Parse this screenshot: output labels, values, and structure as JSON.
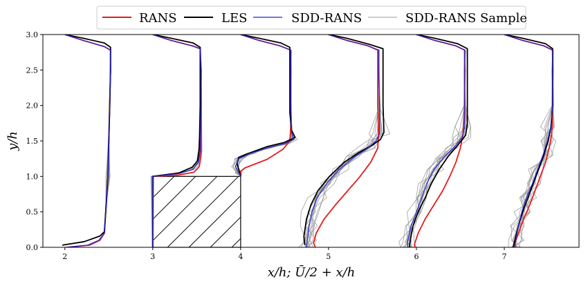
{
  "chart_data": {
    "type": "line",
    "title": "",
    "xlabel": "x/h;   Ū/2 + x/h",
    "ylabel": "y/h",
    "xlim": [
      1.75,
      7.85
    ],
    "ylim": [
      0,
      3.0
    ],
    "xticks": [
      2,
      3,
      4,
      5,
      6,
      7
    ],
    "yticks": [
      0.0,
      0.5,
      1.0,
      1.5,
      2.0,
      2.5,
      3.0
    ],
    "xtick_labels": [
      "2",
      "3",
      "4",
      "5",
      "6",
      "7"
    ],
    "ytick_labels": [
      "0.0",
      "0.5",
      "1.0",
      "1.5",
      "2.0",
      "2.5",
      "3.0"
    ],
    "legend_position": "top-center",
    "legend": [
      {
        "name": "RANS",
        "color": "#e41a1c",
        "width": 2
      },
      {
        "name": "LES",
        "color": "#000000",
        "width": 2
      },
      {
        "name": "SDD-RANS",
        "color": "#2323d6",
        "width": 1.2
      },
      {
        "name": "SDD-RANS Sample",
        "color": "#999999",
        "width": 1
      }
    ],
    "obstacle": {
      "x": [
        3,
        4
      ],
      "y": [
        0,
        1
      ],
      "fill": "hatched"
    },
    "sample_count": 12,
    "stations": [
      {
        "x0": 2,
        "RANS": [
          [
            2.02,
            0
          ],
          [
            2.28,
            0.03
          ],
          [
            2.4,
            0.1
          ],
          [
            2.45,
            0.2
          ],
          [
            2.47,
            0.6
          ],
          [
            2.49,
            1.0
          ],
          [
            2.5,
            1.5
          ],
          [
            2.51,
            2.0
          ],
          [
            2.52,
            2.5
          ],
          [
            2.52,
            2.78
          ],
          [
            2.45,
            2.83
          ],
          [
            2.2,
            2.92
          ],
          [
            2.0,
            3.0
          ]
        ],
        "LES": [
          [
            1.97,
            0.03
          ],
          [
            2.22,
            0.08
          ],
          [
            2.4,
            0.16
          ],
          [
            2.45,
            0.22
          ],
          [
            2.47,
            0.6
          ],
          [
            2.49,
            1.0
          ],
          [
            2.5,
            1.5
          ],
          [
            2.51,
            2.0
          ],
          [
            2.52,
            2.5
          ],
          [
            2.52,
            2.82
          ],
          [
            2.45,
            2.88
          ],
          [
            2.2,
            2.95
          ],
          [
            2.0,
            3.0
          ]
        ],
        "SDD": [
          [
            2.01,
            0
          ],
          [
            2.26,
            0.03
          ],
          [
            2.39,
            0.1
          ],
          [
            2.45,
            0.2
          ],
          [
            2.47,
            0.6
          ],
          [
            2.49,
            1.0
          ],
          [
            2.5,
            1.5
          ],
          [
            2.51,
            2.0
          ],
          [
            2.52,
            2.5
          ],
          [
            2.52,
            2.78
          ],
          [
            2.45,
            2.83
          ],
          [
            2.2,
            2.92
          ],
          [
            2.0,
            3.0
          ]
        ]
      },
      {
        "x0": 3,
        "RANS": [
          [
            3.0,
            0
          ],
          [
            3.0,
            1.0
          ],
          [
            3.3,
            1.02
          ],
          [
            3.47,
            1.06
          ],
          [
            3.53,
            1.14
          ],
          [
            3.55,
            1.3
          ],
          [
            3.55,
            2.0
          ],
          [
            3.55,
            2.5
          ],
          [
            3.54,
            2.8
          ],
          [
            3.45,
            2.84
          ],
          [
            3.2,
            2.92
          ],
          [
            3.0,
            3.0
          ]
        ],
        "LES": [
          [
            3.0,
            0
          ],
          [
            3.0,
            1.0
          ],
          [
            3.3,
            1.05
          ],
          [
            3.45,
            1.13
          ],
          [
            3.51,
            1.22
          ],
          [
            3.53,
            1.4
          ],
          [
            3.54,
            2.0
          ],
          [
            3.54,
            2.5
          ],
          [
            3.54,
            2.82
          ],
          [
            3.46,
            2.88
          ],
          [
            3.2,
            2.95
          ],
          [
            3.0,
            3.0
          ]
        ],
        "SDD": [
          [
            3.0,
            0
          ],
          [
            3.0,
            1.0
          ],
          [
            3.3,
            1.04
          ],
          [
            3.46,
            1.1
          ],
          [
            3.52,
            1.2
          ],
          [
            3.54,
            1.35
          ],
          [
            3.55,
            2.0
          ],
          [
            3.55,
            2.5
          ],
          [
            3.54,
            2.8
          ],
          [
            3.45,
            2.84
          ],
          [
            3.2,
            2.92
          ],
          [
            3.0,
            3.0
          ]
        ]
      },
      {
        "x0": 4,
        "RANS": [
          [
            4.0,
            1.0
          ],
          [
            4.0,
            1.07
          ],
          [
            4.05,
            1.12
          ],
          [
            4.3,
            1.24
          ],
          [
            4.48,
            1.38
          ],
          [
            4.56,
            1.5
          ],
          [
            4.57,
            1.7
          ],
          [
            4.57,
            2.0
          ],
          [
            4.57,
            2.5
          ],
          [
            4.57,
            2.78
          ],
          [
            4.45,
            2.84
          ],
          [
            4.2,
            2.92
          ],
          [
            4.0,
            3.0
          ]
        ],
        "LES": [
          [
            4.0,
            1.0
          ],
          [
            3.96,
            1.18
          ],
          [
            3.98,
            1.27
          ],
          [
            4.08,
            1.32
          ],
          [
            4.3,
            1.42
          ],
          [
            4.5,
            1.48
          ],
          [
            4.62,
            1.55
          ],
          [
            4.58,
            1.65
          ],
          [
            4.56,
            1.9
          ],
          [
            4.56,
            2.5
          ],
          [
            4.56,
            2.82
          ],
          [
            4.46,
            2.88
          ],
          [
            4.2,
            2.95
          ],
          [
            4.0,
            3.0
          ]
        ],
        "SDD": [
          [
            4.0,
            1.0
          ],
          [
            3.98,
            1.05
          ],
          [
            3.94,
            1.14
          ],
          [
            3.98,
            1.25
          ],
          [
            4.1,
            1.32
          ],
          [
            4.3,
            1.4
          ],
          [
            4.5,
            1.46
          ],
          [
            4.6,
            1.52
          ],
          [
            4.58,
            1.62
          ],
          [
            4.57,
            2.0
          ],
          [
            4.57,
            2.5
          ],
          [
            4.57,
            2.78
          ],
          [
            4.45,
            2.84
          ],
          [
            4.2,
            2.92
          ],
          [
            4.0,
            3.0
          ]
        ]
      },
      {
        "x0": 5,
        "RANS": [
          [
            4.85,
            0
          ],
          [
            4.83,
            0.06
          ],
          [
            4.86,
            0.2
          ],
          [
            4.95,
            0.4
          ],
          [
            5.08,
            0.6
          ],
          [
            5.22,
            0.8
          ],
          [
            5.36,
            1.0
          ],
          [
            5.48,
            1.2
          ],
          [
            5.56,
            1.4
          ],
          [
            5.57,
            1.6
          ],
          [
            5.56,
            2.0
          ],
          [
            5.56,
            2.5
          ],
          [
            5.56,
            2.78
          ],
          [
            5.45,
            2.84
          ],
          [
            5.2,
            2.92
          ],
          [
            5.0,
            3.0
          ]
        ],
        "LES": [
          [
            4.73,
            0.03
          ],
          [
            4.72,
            0.15
          ],
          [
            4.75,
            0.4
          ],
          [
            4.8,
            0.6
          ],
          [
            4.88,
            0.8
          ],
          [
            5.01,
            1.0
          ],
          [
            5.18,
            1.2
          ],
          [
            5.35,
            1.34
          ],
          [
            5.5,
            1.44
          ],
          [
            5.59,
            1.52
          ],
          [
            5.63,
            1.62
          ],
          [
            5.62,
            2.0
          ],
          [
            5.62,
            2.5
          ],
          [
            5.62,
            2.8
          ],
          [
            5.47,
            2.86
          ],
          [
            5.2,
            2.95
          ],
          [
            5.0,
            3.0
          ]
        ],
        "SDD": [
          [
            4.75,
            0
          ],
          [
            4.76,
            0.1
          ],
          [
            4.78,
            0.3
          ],
          [
            4.81,
            0.5
          ],
          [
            4.87,
            0.7
          ],
          [
            4.98,
            0.9
          ],
          [
            5.12,
            1.1
          ],
          [
            5.3,
            1.28
          ],
          [
            5.45,
            1.4
          ],
          [
            5.54,
            1.5
          ],
          [
            5.58,
            1.6
          ],
          [
            5.58,
            2.0
          ],
          [
            5.57,
            2.5
          ],
          [
            5.57,
            2.78
          ],
          [
            5.45,
            2.84
          ],
          [
            5.2,
            2.92
          ],
          [
            5.0,
            3.0
          ]
        ]
      },
      {
        "x0": 6,
        "RANS": [
          [
            5.98,
            0
          ],
          [
            5.98,
            0.05
          ],
          [
            6.02,
            0.2
          ],
          [
            6.1,
            0.4
          ],
          [
            6.2,
            0.6
          ],
          [
            6.3,
            0.8
          ],
          [
            6.38,
            1.0
          ],
          [
            6.45,
            1.2
          ],
          [
            6.5,
            1.4
          ],
          [
            6.53,
            1.6
          ],
          [
            6.55,
            2.0
          ],
          [
            6.55,
            2.5
          ],
          [
            6.55,
            2.78
          ],
          [
            6.45,
            2.84
          ],
          [
            6.2,
            2.92
          ],
          [
            6.0,
            3.0
          ]
        ],
        "LES": [
          [
            5.92,
            0
          ],
          [
            5.93,
            0.1
          ],
          [
            5.96,
            0.3
          ],
          [
            6.02,
            0.5
          ],
          [
            6.1,
            0.7
          ],
          [
            6.17,
            0.9
          ],
          [
            6.26,
            1.1
          ],
          [
            6.36,
            1.28
          ],
          [
            6.47,
            1.44
          ],
          [
            6.56,
            1.58
          ],
          [
            6.58,
            1.75
          ],
          [
            6.58,
            2.0
          ],
          [
            6.58,
            2.5
          ],
          [
            6.58,
            2.8
          ],
          [
            6.47,
            2.87
          ],
          [
            6.2,
            2.95
          ],
          [
            6.0,
            3.0
          ]
        ],
        "SDD": [
          [
            5.9,
            0
          ],
          [
            5.9,
            0.08
          ],
          [
            5.94,
            0.3
          ],
          [
            6.0,
            0.5
          ],
          [
            6.06,
            0.7
          ],
          [
            6.12,
            0.9
          ],
          [
            6.2,
            1.1
          ],
          [
            6.3,
            1.25
          ],
          [
            6.42,
            1.4
          ],
          [
            6.52,
            1.55
          ],
          [
            6.55,
            1.7
          ],
          [
            6.55,
            2.0
          ],
          [
            6.55,
            2.5
          ],
          [
            6.55,
            2.78
          ],
          [
            6.45,
            2.84
          ],
          [
            6.2,
            2.92
          ],
          [
            6.0,
            3.0
          ]
        ]
      },
      {
        "x0": 7,
        "RANS": [
          [
            7.12,
            0
          ],
          [
            7.12,
            0.05
          ],
          [
            7.16,
            0.2
          ],
          [
            7.22,
            0.4
          ],
          [
            7.29,
            0.6
          ],
          [
            7.35,
            0.8
          ],
          [
            7.41,
            1.0
          ],
          [
            7.47,
            1.2
          ],
          [
            7.51,
            1.4
          ],
          [
            7.54,
            1.6
          ],
          [
            7.55,
            2.0
          ],
          [
            7.55,
            2.5
          ],
          [
            7.55,
            2.78
          ],
          [
            7.45,
            2.84
          ],
          [
            7.2,
            2.92
          ],
          [
            7.0,
            3.0
          ]
        ],
        "LES": [
          [
            7.1,
            0
          ],
          [
            7.12,
            0.1
          ],
          [
            7.16,
            0.3
          ],
          [
            7.21,
            0.5
          ],
          [
            7.27,
            0.7
          ],
          [
            7.33,
            0.9
          ],
          [
            7.39,
            1.1
          ],
          [
            7.45,
            1.3
          ],
          [
            7.5,
            1.5
          ],
          [
            7.53,
            1.7
          ],
          [
            7.55,
            2.0
          ],
          [
            7.55,
            2.5
          ],
          [
            7.55,
            2.8
          ],
          [
            7.47,
            2.87
          ],
          [
            7.2,
            2.95
          ],
          [
            7.0,
            3.0
          ]
        ],
        "SDD": [
          [
            7.12,
            0
          ],
          [
            7.13,
            0.1
          ],
          [
            7.16,
            0.3
          ],
          [
            7.2,
            0.5
          ],
          [
            7.25,
            0.7
          ],
          [
            7.32,
            0.9
          ],
          [
            7.38,
            1.1
          ],
          [
            7.44,
            1.3
          ],
          [
            7.49,
            1.5
          ],
          [
            7.53,
            1.7
          ],
          [
            7.55,
            2.0
          ],
          [
            7.55,
            2.5
          ],
          [
            7.55,
            2.78
          ],
          [
            7.45,
            2.84
          ],
          [
            7.2,
            2.92
          ],
          [
            7.0,
            3.0
          ]
        ]
      }
    ]
  }
}
